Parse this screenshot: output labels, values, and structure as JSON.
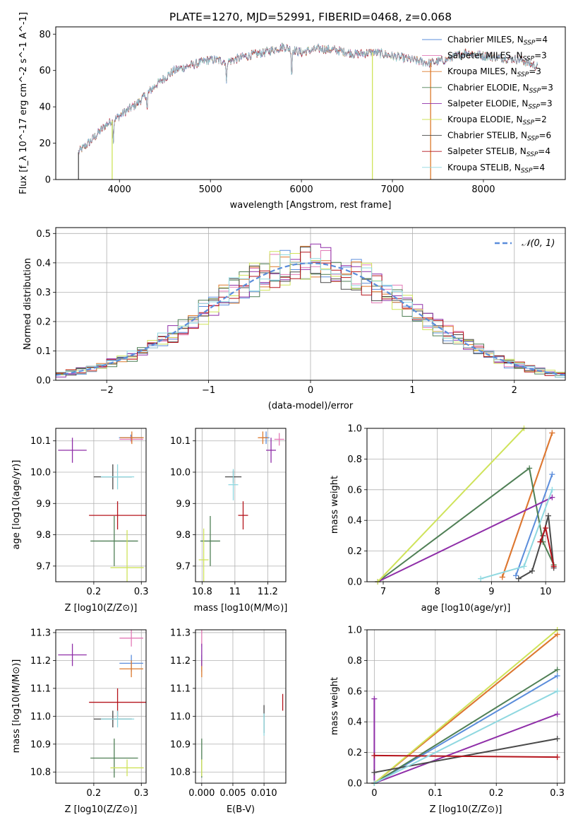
{
  "figure_title": "PLATE=1270, MJD=52991, FIBERID=0468, z=0.068",
  "models": [
    {
      "name": "Chabrier MILES, N_SSP=4",
      "short": "Chabrier MILES",
      "n": "4",
      "color": "#5b8ddb"
    },
    {
      "name": "Salpeter MILES, N_SSP=3",
      "short": "Salpeter MILES",
      "n": "3",
      "color": "#e37ab7"
    },
    {
      "name": "Kroupa MILES, N_SSP=3",
      "short": "Kroupa MILES",
      "n": "3",
      "color": "#dd7a2c"
    },
    {
      "name": "Chabrier ELODIE, N_SSP=3",
      "short": "Chabrier ELODIE",
      "n": "3",
      "color": "#4f7f55"
    },
    {
      "name": "Salpeter ELODIE, N_SSP=3",
      "short": "Salpeter ELODIE",
      "n": "3",
      "color": "#8f2ea8"
    },
    {
      "name": "Kroupa ELODIE, N_SSP=2",
      "short": "Kroupa ELODIE",
      "n": "2",
      "color": "#cfe35a"
    },
    {
      "name": "Chabrier STELIB, N_SSP=6",
      "short": "Chabrier STELIB",
      "n": "6",
      "color": "#4a4a4a"
    },
    {
      "name": "Salpeter STELIB, N_SSP=4",
      "short": "Salpeter STELIB",
      "n": "4",
      "color": "#b5141c"
    },
    {
      "name": "Kroupa STELIB, N_SSP=4",
      "short": "Kroupa STELIB",
      "n": "4",
      "color": "#8fd8e0"
    }
  ],
  "chart_data": [
    {
      "id": "spectrum",
      "type": "line",
      "xlabel": "wavelength [Angstrom, rest frame]",
      "ylabel": "Flux [f_λ 10^-17 erg cm^-2 s^-1 A^-1]",
      "xlim": [
        3300,
        8900
      ],
      "ylim": [
        0,
        84
      ],
      "xticks": [
        4000,
        5000,
        6000,
        7000,
        8000
      ],
      "yticks": [
        0,
        20,
        40,
        60,
        80
      ],
      "legend": "top-right",
      "continuum_x": [
        3550,
        3700,
        3850,
        4000,
        4200,
        4400,
        4600,
        4800,
        5000,
        5200,
        5400,
        5600,
        5800,
        6000,
        6200,
        6400,
        6600,
        6800,
        7000,
        7200,
        7400,
        7600,
        7800,
        8000,
        8200,
        8400,
        8600
      ],
      "continuum_y": [
        15,
        22,
        30,
        35,
        42,
        52,
        60,
        63,
        66,
        65,
        68,
        70,
        73,
        70,
        72,
        71,
        69,
        70,
        68,
        66,
        64,
        66,
        70,
        68,
        67,
        66,
        62
      ],
      "absorption_lines": [
        {
          "x": 3933,
          "depth": 12
        },
        {
          "x": 4304,
          "depth": 10
        },
        {
          "x": 5175,
          "depth": 14
        },
        {
          "x": 5893,
          "depth": 16
        }
      ],
      "drop_lines": [
        {
          "x": 3550,
          "model": 6
        },
        {
          "x": 3920,
          "model": 5
        },
        {
          "x": 6780,
          "model": 5
        },
        {
          "x": 7420,
          "model": 2
        }
      ]
    },
    {
      "id": "residuals",
      "type": "histogram",
      "xlabel": "(data-model)/error",
      "ylabel": "Normed distribution",
      "xlim": [
        -2.5,
        2.5
      ],
      "ylim": [
        0,
        0.52
      ],
      "xticks": [
        -2,
        -1,
        0,
        1,
        2
      ],
      "yticks": [
        0.0,
        0.1,
        0.2,
        0.3,
        0.4,
        0.5
      ],
      "bin_width": 0.1,
      "gaussian_label": "𝒩(0, 1)",
      "legend": "top-right"
    },
    {
      "id": "age_vs_Z",
      "type": "scatter",
      "xlabel": "Z [log10(Z/Z⊙)]",
      "ylabel": "age  [log10(age/yr)]",
      "xlim": [
        0.12,
        0.31
      ],
      "ylim": [
        9.65,
        10.14
      ],
      "xticks": [
        0.2,
        0.3
      ],
      "yticks": [
        9.7,
        9.8,
        9.9,
        10.0,
        10.1
      ],
      "points": [
        {
          "model": 0,
          "x": 0.278,
          "xe": 0.025,
          "y": 10.11,
          "ye": 0.01
        },
        {
          "model": 1,
          "x": 0.279,
          "xe": 0.025,
          "y": 10.105,
          "ye": 0.01
        },
        {
          "model": 2,
          "x": 0.28,
          "xe": 0.025,
          "y": 10.11,
          "ye": 0.02
        },
        {
          "model": 3,
          "x": 0.243,
          "xe": 0.05,
          "y": 9.78,
          "ye": 0.08
        },
        {
          "model": 4,
          "x": 0.155,
          "xe": 0.03,
          "y": 10.07,
          "ye": 0.04
        },
        {
          "model": 5,
          "x": 0.27,
          "xe": 0.035,
          "y": 9.695,
          "ye": 0.12
        },
        {
          "model": 6,
          "x": 0.24,
          "xe": 0.04,
          "y": 9.985,
          "ye": 0.04
        },
        {
          "model": 7,
          "x": 0.25,
          "xe": 0.06,
          "y": 9.862,
          "ye": 0.045
        },
        {
          "model": 8,
          "x": 0.25,
          "xe": 0.035,
          "y": 9.985,
          "ye": 0.04
        }
      ]
    },
    {
      "id": "age_vs_mass",
      "type": "scatter",
      "xlabel": "mass [log10(M/M⊙)]",
      "ylabel": "",
      "xlim": [
        10.76,
        11.31
      ],
      "ylim": [
        9.65,
        10.14
      ],
      "xticks": [
        10.8,
        11.0,
        11.2
      ],
      "yticks": [
        9.7,
        9.8,
        9.9,
        10.0,
        10.1
      ],
      "points": [
        {
          "model": 0,
          "x": 11.19,
          "xe": 0.02,
          "y": 10.11,
          "ye": 0.02
        },
        {
          "model": 1,
          "x": 11.27,
          "xe": 0.03,
          "y": 10.105,
          "ye": 0.02
        },
        {
          "model": 2,
          "x": 11.17,
          "xe": 0.03,
          "y": 10.11,
          "ye": 0.02
        },
        {
          "model": 3,
          "x": 10.85,
          "xe": 0.06,
          "y": 9.78,
          "ye": 0.08
        },
        {
          "model": 4,
          "x": 11.22,
          "xe": 0.03,
          "y": 10.07,
          "ye": 0.04
        },
        {
          "model": 5,
          "x": 10.81,
          "xe": 0.03,
          "y": 9.72,
          "ye": 0.1
        },
        {
          "model": 6,
          "x": 10.99,
          "xe": 0.05,
          "y": 9.985,
          "ye": 0.02
        },
        {
          "model": 7,
          "x": 11.05,
          "xe": 0.03,
          "y": 9.862,
          "ye": 0.045
        },
        {
          "model": 8,
          "x": 10.99,
          "xe": 0.03,
          "y": 9.96,
          "ye": 0.05
        }
      ]
    },
    {
      "id": "massweight_vs_age",
      "type": "line",
      "xlabel": "age  [log10(age/yr)]",
      "ylabel": "mass weight",
      "xlim": [
        6.7,
        10.35
      ],
      "ylim": [
        0,
        1
      ],
      "xticks": [
        7,
        8,
        9,
        10
      ],
      "yticks": [
        0.0,
        0.2,
        0.4,
        0.6,
        0.8,
        1.0
      ],
      "series": [
        {
          "model": 0,
          "x": [
            9.45,
            10.12
          ],
          "y": [
            0.04,
            0.7
          ]
        },
        {
          "model": 1,
          "x": [
            9.2,
            10.12
          ],
          "y": [
            0.03,
            0.97
          ]
        },
        {
          "model": 2,
          "x": [
            9.2,
            10.12
          ],
          "y": [
            0.03,
            0.97
          ]
        },
        {
          "model": 3,
          "x": [
            6.9,
            9.7,
            9.95,
            10.15
          ],
          "y": [
            0.0,
            0.74,
            0.26,
            0.11
          ]
        },
        {
          "model": 4,
          "x": [
            6.9,
            10.12
          ],
          "y": [
            0.0,
            0.55
          ]
        },
        {
          "model": 5,
          "x": [
            6.9,
            9.6
          ],
          "y": [
            0.0,
            1.0
          ]
        },
        {
          "model": 6,
          "x": [
            9.5,
            9.75,
            9.95,
            10.05,
            10.15
          ],
          "y": [
            0.02,
            0.07,
            0.3,
            0.43,
            0.09
          ]
        },
        {
          "model": 7,
          "x": [
            9.9,
            10.0,
            10.15
          ],
          "y": [
            0.26,
            0.35,
            0.1
          ]
        },
        {
          "model": 8,
          "x": [
            8.8,
            9.6,
            10.12
          ],
          "y": [
            0.02,
            0.1,
            0.6
          ]
        }
      ]
    },
    {
      "id": "mass_vs_Z",
      "type": "scatter",
      "xlabel": "Z [log10(Z/Z⊙)]",
      "ylabel": "mass [log10(M/M⊙)]",
      "xlim": [
        0.12,
        0.31
      ],
      "ylim": [
        10.76,
        11.31
      ],
      "xticks": [
        0.2,
        0.3
      ],
      "yticks": [
        10.8,
        10.9,
        11.0,
        11.1,
        11.2,
        11.3
      ],
      "points": [
        {
          "model": 0,
          "x": 0.279,
          "xe": 0.025,
          "y": 11.19,
          "ye": 0.03
        },
        {
          "model": 1,
          "x": 0.279,
          "xe": 0.025,
          "y": 11.28,
          "ye": 0.03
        },
        {
          "model": 2,
          "x": 0.279,
          "xe": 0.025,
          "y": 11.17,
          "ye": 0.03
        },
        {
          "model": 3,
          "x": 0.243,
          "xe": 0.05,
          "y": 10.85,
          "ye": 0.07
        },
        {
          "model": 4,
          "x": 0.155,
          "xe": 0.03,
          "y": 11.22,
          "ye": 0.04
        },
        {
          "model": 5,
          "x": 0.27,
          "xe": 0.035,
          "y": 10.815,
          "ye": 0.03
        },
        {
          "model": 6,
          "x": 0.24,
          "xe": 0.04,
          "y": 10.99,
          "ye": 0.03
        },
        {
          "model": 7,
          "x": 0.25,
          "xe": 0.06,
          "y": 11.05,
          "ye": 0.05
        },
        {
          "model": 8,
          "x": 0.25,
          "xe": 0.035,
          "y": 10.99,
          "ye": 0.03
        }
      ]
    },
    {
      "id": "mass_vs_EBV",
      "type": "scatter",
      "xlabel": "E(B-V)",
      "ylabel": "",
      "xlim": [
        -0.001,
        0.0135
      ],
      "ylim": [
        10.76,
        11.31
      ],
      "xticks": [
        0.0,
        0.005,
        0.01
      ],
      "xtick_labels": [
        "0.000",
        "0.005",
        "0.010"
      ],
      "yticks": [
        10.8,
        10.9,
        11.0,
        11.1,
        11.2,
        11.3
      ],
      "points": [
        {
          "model": 0,
          "x": 0.0,
          "xe": 0,
          "y": 11.19,
          "ye": 0.03
        },
        {
          "model": 1,
          "x": 0.0,
          "xe": 0,
          "y": 11.28,
          "ye": 0.03
        },
        {
          "model": 2,
          "x": 0.0,
          "xe": 0,
          "y": 11.17,
          "ye": 0.03
        },
        {
          "model": 3,
          "x": 0.0,
          "xe": 0,
          "y": 10.85,
          "ye": 0.07
        },
        {
          "model": 4,
          "x": 0.0,
          "xe": 0,
          "y": 11.22,
          "ye": 0.04
        },
        {
          "model": 5,
          "x": 0.0,
          "xe": 0,
          "y": 10.815,
          "ye": 0.03
        },
        {
          "model": 6,
          "x": 0.01,
          "xe": 0,
          "y": 10.99,
          "ye": 0.05
        },
        {
          "model": 7,
          "x": 0.013,
          "xe": 0,
          "y": 11.05,
          "ye": 0.03
        },
        {
          "model": 8,
          "x": 0.01,
          "xe": 0,
          "y": 10.97,
          "ye": 0.04
        }
      ]
    },
    {
      "id": "massweight_vs_Z",
      "type": "line",
      "xlabel": "Z [log10(Z/Z⊙)]",
      "ylabel": "mass weight",
      "xlim": [
        -0.012,
        0.312
      ],
      "ylim": [
        0,
        1
      ],
      "xticks": [
        0.0,
        0.1,
        0.2,
        0.3
      ],
      "yticks": [
        0.0,
        0.2,
        0.4,
        0.6,
        0.8,
        1.0
      ],
      "series": [
        {
          "model": 0,
          "x": [
            0.0,
            0.3
          ],
          "y": [
            0.0,
            0.7
          ]
        },
        {
          "model": 1,
          "x": [
            0.0,
            0.3
          ],
          "y": [
            0.0,
            0.97
          ]
        },
        {
          "model": 2,
          "x": [
            0.0,
            0.3
          ],
          "y": [
            0.0,
            0.97
          ]
        },
        {
          "model": 3,
          "x": [
            0.0,
            0.3
          ],
          "y": [
            0.0,
            0.74
          ]
        },
        {
          "model": 4,
          "x": [
            0.0,
            0.0,
            0.3
          ],
          "y": [
            0.55,
            0.0,
            0.45
          ]
        },
        {
          "model": 5,
          "x": [
            0.0,
            0.3
          ],
          "y": [
            0.0,
            1.0
          ]
        },
        {
          "model": 6,
          "x": [
            0.0,
            0.3
          ],
          "y": [
            0.07,
            0.29
          ]
        },
        {
          "model": 7,
          "x": [
            0.0,
            0.3
          ],
          "y": [
            0.18,
            0.17
          ]
        },
        {
          "model": 8,
          "x": [
            0.0,
            0.3
          ],
          "y": [
            0.0,
            0.6
          ]
        }
      ]
    }
  ]
}
